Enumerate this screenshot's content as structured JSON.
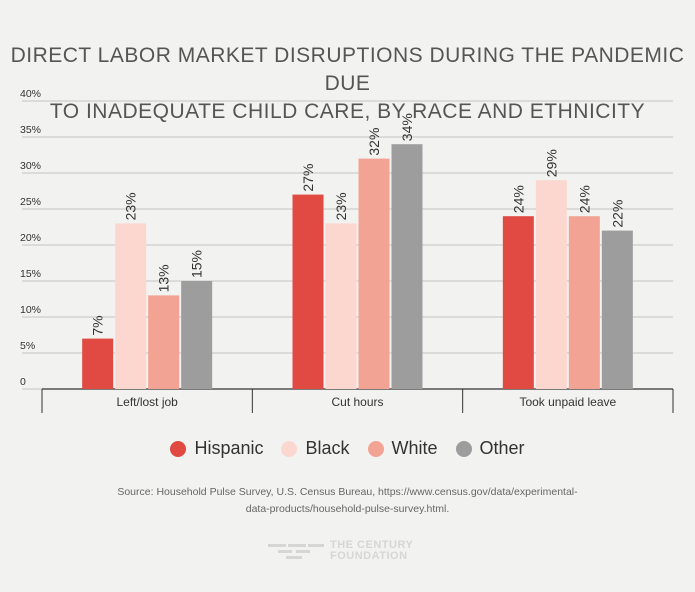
{
  "chart_data": {
    "type": "bar",
    "title_lines": [
      "DIRECT LABOR MARKET DISRUPTIONS DURING THE PANDEMIC DUE",
      "TO INADEQUATE CHILD CARE, BY RACE AND ETHNICITY"
    ],
    "categories": [
      "Left/lost job",
      "Cut hours",
      "Took unpaid leave"
    ],
    "series": [
      {
        "name": "Hispanic",
        "color": "#e04a43",
        "values": [
          7,
          27,
          24
        ]
      },
      {
        "name": "Black",
        "color": "#fcd7cf",
        "values": [
          23,
          23,
          29
        ]
      },
      {
        "name": "White",
        "color": "#f2a394",
        "values": [
          13,
          32,
          24
        ]
      },
      {
        "name": "Other",
        "color": "#9d9d9d",
        "values": [
          15,
          34,
          22
        ]
      }
    ],
    "value_suffix": "%",
    "ylim": [
      0,
      40
    ],
    "yticks": [
      0,
      5,
      10,
      15,
      20,
      25,
      30,
      35,
      40
    ],
    "ytick_labels": [
      "0",
      "5%",
      "10%",
      "15%",
      "20%",
      "25%",
      "30%",
      "35%",
      "40%"
    ],
    "xlabel": "",
    "ylabel": "",
    "grid": true,
    "legend_position": "bottom"
  },
  "source_lines": [
    "Source: Household Pulse Survey, U.S. Census Bureau, https://www.census.gov/data/experimental-",
    "data-products/household-pulse-survey.html."
  ],
  "logo": {
    "line1": "THE CENTURY",
    "line2": "FOUNDATION"
  }
}
